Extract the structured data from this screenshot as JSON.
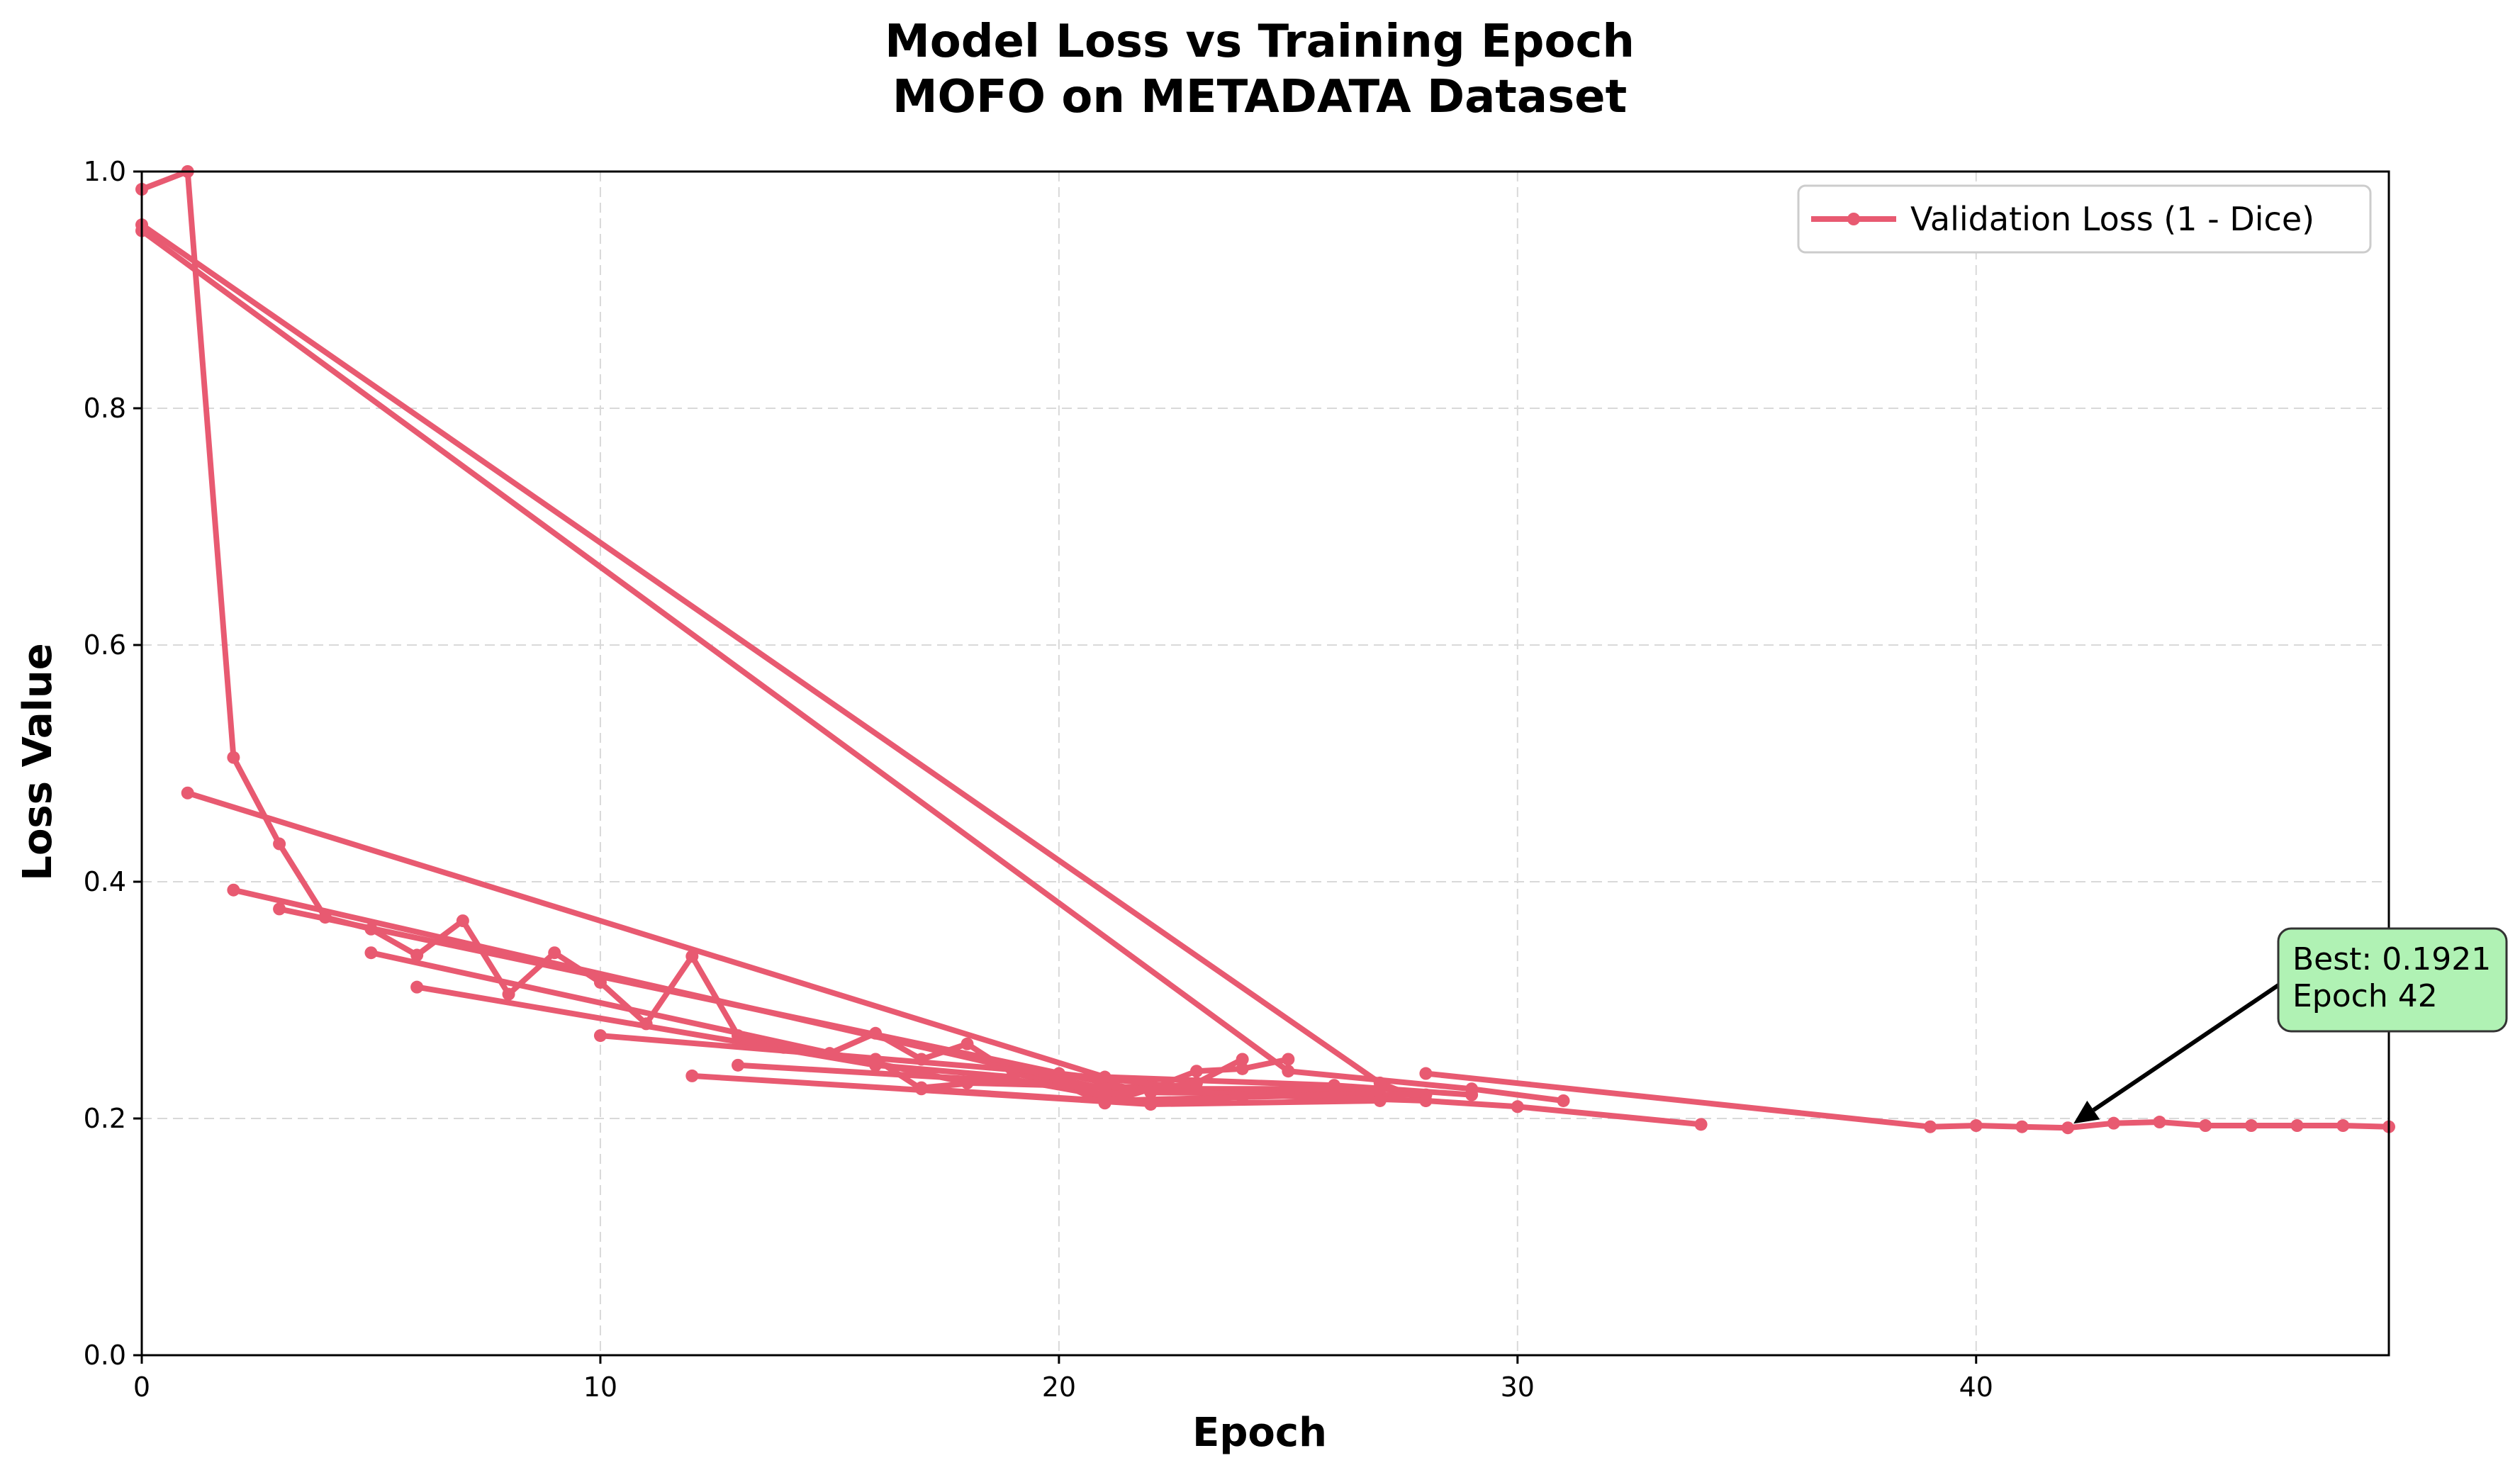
{
  "chart_data": {
    "type": "line",
    "title": [
      "Model Loss vs Training Epoch",
      "MOFO on METADATA Dataset"
    ],
    "xlabel": "Epoch",
    "ylabel": "Loss Value",
    "xlim": [
      0,
      49
    ],
    "ylim": [
      0,
      1.0
    ],
    "xticks": [
      0,
      10,
      20,
      30,
      40
    ],
    "xtick_labels": [
      "0",
      "10",
      "20",
      "30",
      "40"
    ],
    "yticks": [
      0.0,
      0.2,
      0.4,
      0.6,
      0.8,
      1.0
    ],
    "ytick_labels": [
      "0.0",
      "0.2",
      "0.4",
      "0.6",
      "0.8",
      "1.0"
    ],
    "grid": true,
    "legend_position": "top-right",
    "series": [
      {
        "name": "Validation Loss (1 - Dice)",
        "color": "#e85a71",
        "x": [
          0,
          1,
          2,
          3,
          4,
          5,
          6,
          7,
          8,
          9,
          10,
          11,
          12,
          13,
          14,
          15,
          16,
          17,
          18,
          19,
          20,
          21,
          22,
          23,
          24,
          25,
          0,
          27,
          28,
          30,
          34,
          0,
          25,
          29,
          31,
          1,
          21,
          26,
          29,
          2,
          21,
          27,
          3,
          22,
          28,
          5,
          18,
          23,
          6,
          16,
          19,
          10,
          20,
          23,
          12,
          22,
          27,
          13,
          24,
          28,
          16,
          17,
          21,
          24,
          26,
          17,
          19,
          22,
          25,
          20,
          21,
          23,
          24,
          28,
          39,
          40,
          41,
          42,
          43,
          44,
          45,
          46,
          47,
          48,
          49
        ],
        "y": [
          0.985,
          1.0,
          0.505,
          0.432,
          0.37,
          0.36,
          0.338,
          0.367,
          0.305,
          0.34,
          0.315,
          0.28,
          0.337,
          0.27,
          0.26,
          0.255,
          0.272,
          0.25,
          0.263,
          0.238,
          0.23,
          0.213,
          0.225,
          0.24,
          0.242,
          0.25,
          0.955,
          0.23,
          0.215,
          0.21,
          0.195,
          0.95,
          0.24,
          0.225,
          0.215,
          0.475,
          0.235,
          0.228,
          0.22,
          0.393,
          0.225,
          0.225,
          0.377,
          0.222,
          0.22,
          0.34,
          0.23,
          0.225,
          0.311,
          0.245,
          0.235,
          0.27,
          0.238,
          0.225,
          0.236,
          0.212,
          0.215,
          0.245,
          0.22,
          0.215,
          0.25,
          0.225,
          0.215,
          0.218,
          0.22,
          0.226,
          0.233,
          0.212,
          0.222,
          0.23,
          0.22,
          0.23,
          0.25,
          0.238,
          0.193,
          0.194,
          0.193,
          0.1921,
          0.196,
          0.197,
          0.194,
          0.194,
          0.194,
          0.194,
          0.193
        ],
        "segments": [
          26,
          5,
          4,
          4,
          3,
          3,
          3,
          3,
          3,
          3,
          3,
          5,
          4,
          4,
          12
        ]
      }
    ],
    "annotation": {
      "text": [
        "Best: 0.1921",
        "Epoch 42"
      ],
      "x": 42,
      "y": 0.1921,
      "box_color": "#b0f2b4"
    }
  }
}
